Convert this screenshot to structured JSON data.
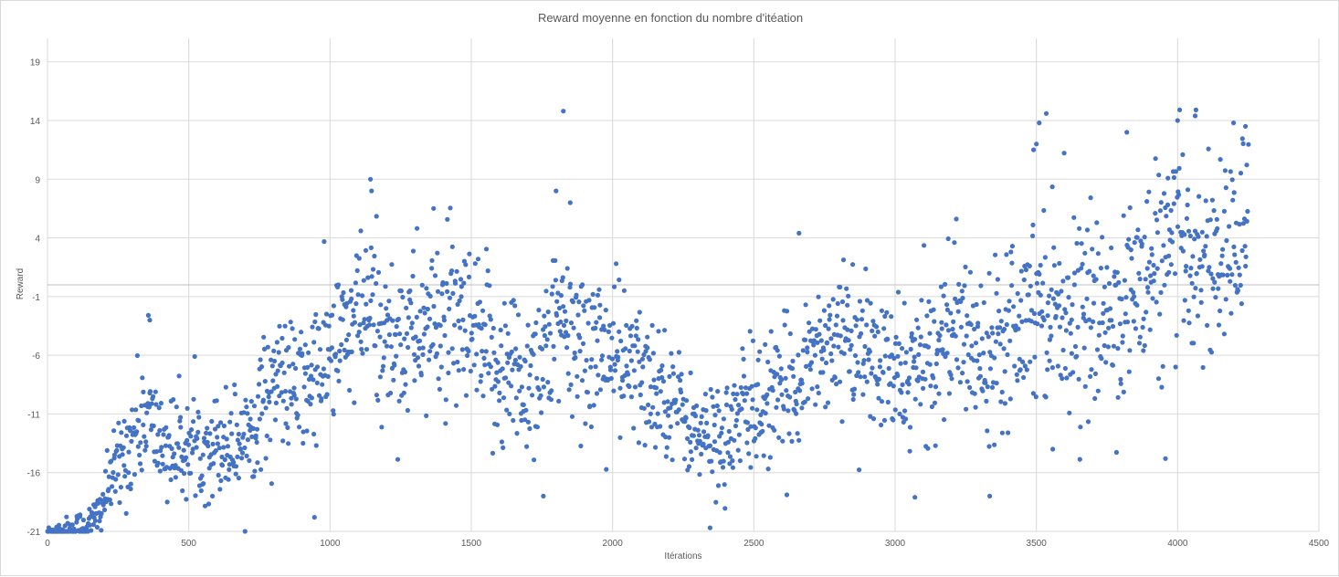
{
  "chart_data": {
    "type": "scatter",
    "title": "Reward moyenne en fonction du nombre d'itéation",
    "xlabel": "Itérations",
    "ylabel": "Reward",
    "xlim": [
      0,
      4500
    ],
    "ylim": [
      -21,
      21
    ],
    "x_ticks": [
      0,
      500,
      1000,
      1500,
      2000,
      2500,
      3000,
      3500,
      4000,
      4500
    ],
    "y_ticks": [
      -21,
      -16,
      -11,
      -6,
      -1,
      4,
      9,
      14,
      19
    ],
    "grid": true,
    "legend": "none",
    "marker_color": "#4472c4",
    "x_count": 4250,
    "series": [
      {
        "trend_x": [
          0,
          100,
          150,
          180,
          220,
          260,
          300,
          350,
          400,
          450,
          500,
          600,
          700,
          800,
          900,
          1000,
          1100,
          1150,
          1200,
          1300,
          1400,
          1500,
          1600,
          1700,
          1800,
          1900,
          2000,
          2100,
          2200,
          2300,
          2400,
          2500,
          2600,
          2700,
          2800,
          2900,
          3000,
          3100,
          3200,
          3300,
          3400,
          3500,
          3600,
          3700,
          3800,
          3900,
          4000,
          4100,
          4200,
          4250
        ],
        "trend_y": [
          -21,
          -20.8,
          -20.5,
          -19.5,
          -17,
          -15,
          -13,
          -11,
          -13.5,
          -14,
          -14,
          -13.5,
          -13,
          -8,
          -9,
          -6,
          -3,
          -2,
          -5,
          -4,
          -3,
          -5,
          -7,
          -8,
          -4,
          -5,
          -6,
          -8,
          -9,
          -13,
          -13,
          -10,
          -10,
          -6,
          -4,
          -6,
          -8,
          -7,
          -3,
          -6,
          -3,
          -1,
          -2,
          -3,
          -2,
          1,
          3,
          2,
          3,
          4
        ],
        "spread_x": [
          0,
          200,
          300,
          500,
          800,
          1100,
          1500,
          2000,
          2300,
          2500,
          2800,
          3000,
          3500,
          4000,
          4250
        ],
        "spread_y": [
          0.2,
          1.2,
          2.5,
          2.0,
          2.6,
          3.5,
          3.8,
          3.5,
          2.0,
          3.0,
          2.6,
          3.0,
          3.8,
          4.2,
          4.0
        ],
        "values": [
          [
            357,
            -2.6
          ],
          [
            362,
            -3.0
          ],
          [
            1143,
            9.0
          ],
          [
            1147,
            8.0
          ],
          [
            1826,
            14.8
          ],
          [
            1800,
            8.0
          ],
          [
            1850,
            7.0
          ],
          [
            3535,
            14.6
          ],
          [
            3510,
            13.8
          ],
          [
            4065,
            14.9
          ],
          [
            4062,
            14.4
          ],
          [
            4000,
            14.0
          ],
          [
            4198,
            13.8
          ],
          [
            4240,
            13.5
          ],
          [
            2345,
            -20.7
          ],
          [
            945,
            -19.8
          ],
          [
            1755,
            -18.0
          ],
          [
            2660,
            4.4
          ],
          [
            3335,
            -18.0
          ],
          [
            3070,
            -18.1
          ],
          [
            3957,
            -14.8
          ],
          [
            3558,
            -14.0
          ],
          [
            3820,
            13.0
          ],
          [
            3500,
            12.0
          ],
          [
            3490,
            11.5
          ]
        ]
      }
    ]
  }
}
